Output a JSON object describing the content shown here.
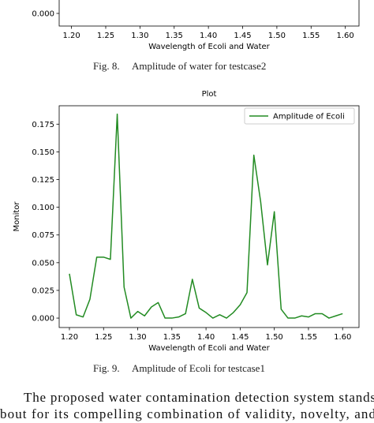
{
  "figures": [
    {
      "label": "Fig. 8.",
      "caption": "Amplitude of water for testcase2",
      "chart_data": {
        "type": "line",
        "x_label": "Wavelength of Ecoli and Water",
        "xlim": [
          1.182,
          1.62
        ],
        "xticks": [
          {
            "value": 1.2,
            "label": "1.20"
          },
          {
            "value": 1.25,
            "label": "1.25"
          },
          {
            "value": 1.3,
            "label": "1.30"
          },
          {
            "value": 1.35,
            "label": "1.35"
          },
          {
            "value": 1.4,
            "label": "1.40"
          },
          {
            "value": 1.45,
            "label": "1.45"
          },
          {
            "value": 1.5,
            "label": "1.50"
          },
          {
            "value": 1.55,
            "label": "1.55"
          },
          {
            "value": 1.6,
            "label": "1.60"
          }
        ],
        "yticks": [
          {
            "value": 0,
            "label": "0.000"
          }
        ]
      }
    },
    {
      "label": "Fig. 9.",
      "caption": "Amplitude of Ecoli for testcase1",
      "chart_data": {
        "type": "line",
        "title": "Plot",
        "x_label": "Wavelength of Ecoli and Water",
        "y_label": "Monitor",
        "x": [
          1.2,
          1.21,
          1.22,
          1.23,
          1.24,
          1.25,
          1.26,
          1.27,
          1.28,
          1.29,
          1.3,
          1.31,
          1.32,
          1.33,
          1.34,
          1.35,
          1.36,
          1.37,
          1.38,
          1.39,
          1.4,
          1.41,
          1.42,
          1.43,
          1.44,
          1.45,
          1.46,
          1.47,
          1.48,
          1.49,
          1.5,
          1.51,
          1.52,
          1.53,
          1.54,
          1.55,
          1.56,
          1.57,
          1.58,
          1.59,
          1.6
        ],
        "series": [
          {
            "name": "Amplitude of Ecoli",
            "color": "#228b22",
            "values": [
              0.04,
              0.003,
              0.001,
              0.017,
              0.055,
              0.055,
              0.053,
              0.184,
              0.028,
              0.0,
              0.006,
              0.002,
              0.01,
              0.014,
              0.0,
              0.0,
              0.001,
              0.004,
              0.035,
              0.009,
              0.005,
              0.0,
              0.003,
              0.0,
              0.005,
              0.012,
              0.023,
              0.147,
              0.105,
              0.048,
              0.096,
              0.008,
              0.0,
              0.0,
              0.002,
              0.001,
              0.004,
              0.004,
              0.0,
              0.002,
              0.004
            ]
          }
        ],
        "xlim": [
          1.185,
          1.624
        ],
        "ylim": [
          -0.0085,
          0.1916
        ],
        "xticks": [
          {
            "value": 1.2,
            "label": "1.20"
          },
          {
            "value": 1.25,
            "label": "1.25"
          },
          {
            "value": 1.3,
            "label": "1.30"
          },
          {
            "value": 1.35,
            "label": "1.35"
          },
          {
            "value": 1.4,
            "label": "1.40"
          },
          {
            "value": 1.45,
            "label": "1.45"
          },
          {
            "value": 1.5,
            "label": "1.50"
          },
          {
            "value": 1.55,
            "label": "1.55"
          },
          {
            "value": 1.6,
            "label": "1.60"
          }
        ],
        "yticks": [
          {
            "value": 0,
            "label": "0.000"
          },
          {
            "value": 0.025,
            "label": "0.025"
          },
          {
            "value": 0.05,
            "label": "0.050"
          },
          {
            "value": 0.075,
            "label": "0.075"
          },
          {
            "value": 0.1,
            "label": "0.100"
          },
          {
            "value": 0.125,
            "label": "0.125"
          },
          {
            "value": 0.15,
            "label": "0.150"
          },
          {
            "value": 0.175,
            "label": "0.175"
          }
        ],
        "legend": "upper right"
      }
    }
  ],
  "body": {
    "lines": [
      "The proposed water contamination detection system stands",
      "bout for its compelling combination of validity, novelty, and"
    ]
  }
}
